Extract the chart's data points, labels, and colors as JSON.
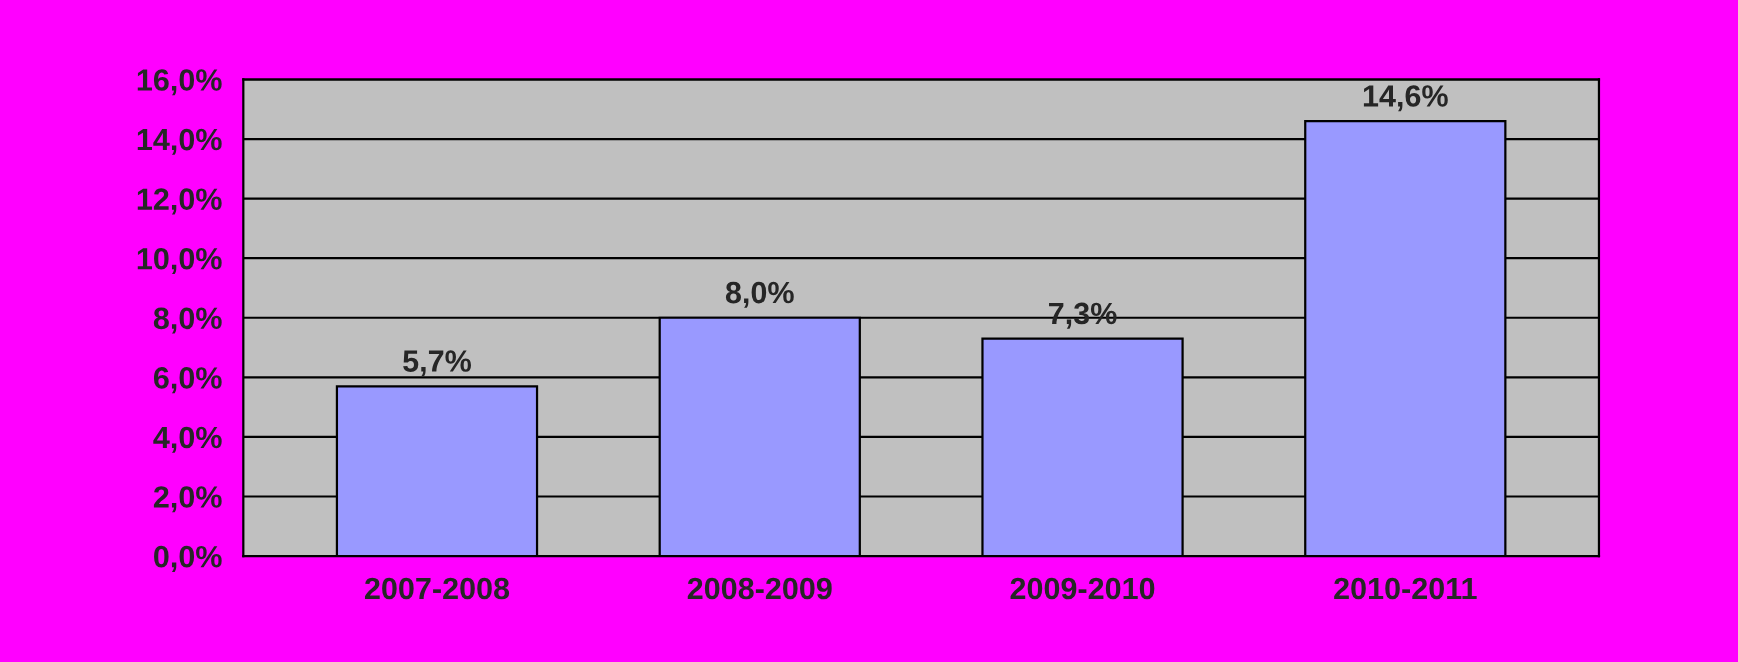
{
  "chart_data": {
    "type": "bar",
    "categories": [
      "2007-2008",
      "2008-2009",
      "2009-2010",
      "2010-2011"
    ],
    "values": [
      5.7,
      8.0,
      7.3,
      14.6
    ],
    "value_labels": [
      "5,7%",
      "8,0%",
      "7,3%",
      "14,6%"
    ],
    "color": "#9999ff",
    "ylim": [
      0,
      16
    ],
    "yticks": [
      {
        "value": 0,
        "label": "0,0%"
      },
      {
        "value": 2,
        "label": "2,0%"
      },
      {
        "value": 4,
        "label": "4,0%"
      },
      {
        "value": 6,
        "label": "6,0%"
      },
      {
        "value": 8,
        "label": "8,0%"
      },
      {
        "value": 10,
        "label": "10,0%"
      },
      {
        "value": 12,
        "label": "12,0%"
      },
      {
        "value": 14,
        "label": "14,0%"
      },
      {
        "value": 16,
        "label": "16,0%"
      }
    ],
    "grid": "y"
  }
}
